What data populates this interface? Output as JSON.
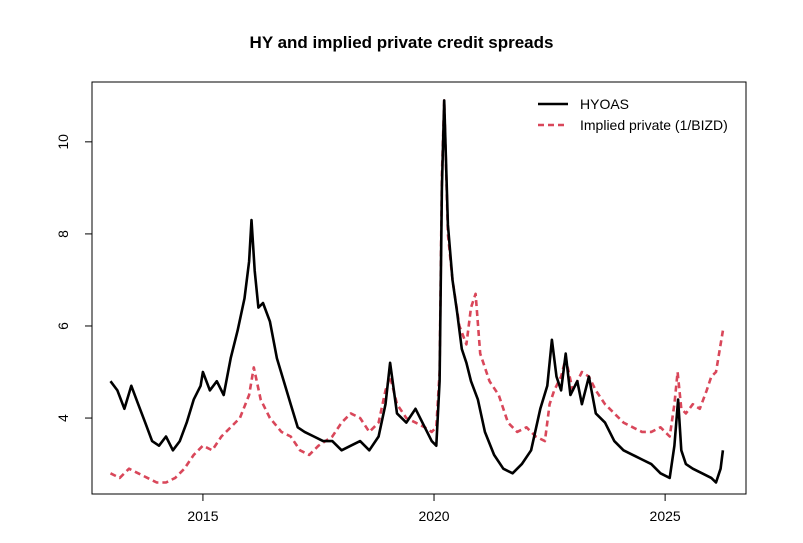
{
  "chart_data": {
    "type": "line",
    "title": "HY and implied private credit spreads",
    "xlabel": "",
    "ylabel": "",
    "xlim": [
      2012.6,
      2026.75
    ],
    "ylim": [
      2.35,
      11.3
    ],
    "x_ticks": [
      {
        "value": 2015,
        "label": "2015"
      },
      {
        "value": 2020,
        "label": "2020"
      },
      {
        "value": 2025,
        "label": "2025"
      }
    ],
    "y_ticks": [
      {
        "value": 4,
        "label": "4"
      },
      {
        "value": 6,
        "label": "6"
      },
      {
        "value": 8,
        "label": "8"
      },
      {
        "value": 10,
        "label": "10"
      }
    ],
    "legend_position": "top-right",
    "grid": false,
    "series": [
      {
        "name": "HYOAS",
        "color": "#000000",
        "style": "solid",
        "x": [
          2013.0,
          2013.15,
          2013.3,
          2013.45,
          2013.6,
          2013.75,
          2013.9,
          2014.05,
          2014.2,
          2014.35,
          2014.5,
          2014.65,
          2014.8,
          2014.95,
          2015.0,
          2015.15,
          2015.3,
          2015.45,
          2015.6,
          2015.75,
          2015.9,
          2016.0,
          2016.05,
          2016.12,
          2016.2,
          2016.3,
          2016.45,
          2016.6,
          2016.75,
          2016.9,
          2017.05,
          2017.2,
          2017.4,
          2017.6,
          2017.8,
          2018.0,
          2018.2,
          2018.4,
          2018.6,
          2018.8,
          2018.95,
          2019.05,
          2019.2,
          2019.4,
          2019.6,
          2019.8,
          2019.95,
          2020.05,
          2020.12,
          2020.17,
          2020.22,
          2020.3,
          2020.4,
          2020.5,
          2020.6,
          2020.7,
          2020.8,
          2020.95,
          2021.1,
          2021.3,
          2021.5,
          2021.7,
          2021.9,
          2022.1,
          2022.3,
          2022.45,
          2022.55,
          2022.65,
          2022.75,
          2022.85,
          2022.95,
          2023.1,
          2023.2,
          2023.35,
          2023.5,
          2023.7,
          2023.9,
          2024.1,
          2024.3,
          2024.5,
          2024.7,
          2024.9,
          2025.1,
          2025.2,
          2025.28,
          2025.35,
          2025.45,
          2025.6,
          2025.8,
          2026.0,
          2026.1,
          2026.2,
          2026.25
        ],
        "values": [
          4.8,
          4.6,
          4.2,
          4.7,
          4.3,
          3.9,
          3.5,
          3.4,
          3.6,
          3.3,
          3.5,
          3.9,
          4.4,
          4.7,
          5.0,
          4.6,
          4.8,
          4.5,
          5.3,
          5.9,
          6.6,
          7.4,
          8.3,
          7.2,
          6.4,
          6.5,
          6.1,
          5.3,
          4.8,
          4.3,
          3.8,
          3.7,
          3.6,
          3.5,
          3.5,
          3.3,
          3.4,
          3.5,
          3.3,
          3.6,
          4.3,
          5.2,
          4.1,
          3.9,
          4.2,
          3.8,
          3.5,
          3.4,
          4.8,
          9.0,
          10.9,
          8.2,
          7.0,
          6.3,
          5.5,
          5.2,
          4.8,
          4.4,
          3.7,
          3.2,
          2.9,
          2.8,
          3.0,
          3.3,
          4.2,
          4.7,
          5.7,
          4.9,
          4.6,
          5.4,
          4.5,
          4.8,
          4.3,
          4.9,
          4.1,
          3.9,
          3.5,
          3.3,
          3.2,
          3.1,
          3.0,
          2.8,
          2.7,
          3.4,
          4.4,
          3.3,
          3.0,
          2.9,
          2.8,
          2.7,
          2.6,
          2.9,
          3.3
        ]
      },
      {
        "name": "Implied private (1/BIZD)",
        "color": "#d9475a",
        "style": "dashed",
        "x": [
          2013.0,
          2013.2,
          2013.4,
          2013.6,
          2013.8,
          2014.0,
          2014.2,
          2014.4,
          2014.6,
          2014.8,
          2015.0,
          2015.2,
          2015.4,
          2015.6,
          2015.8,
          2016.0,
          2016.1,
          2016.25,
          2016.45,
          2016.7,
          2016.9,
          2017.1,
          2017.3,
          2017.5,
          2017.8,
          2018.0,
          2018.2,
          2018.4,
          2018.6,
          2018.8,
          2018.95,
          2019.05,
          2019.2,
          2019.4,
          2019.6,
          2019.8,
          2019.95,
          2020.05,
          2020.12,
          2020.17,
          2020.22,
          2020.3,
          2020.4,
          2020.55,
          2020.7,
          2020.8,
          2020.9,
          2021.0,
          2021.2,
          2021.4,
          2021.6,
          2021.8,
          2022.0,
          2022.2,
          2022.4,
          2022.5,
          2022.6,
          2022.75,
          2022.85,
          2023.0,
          2023.2,
          2023.35,
          2023.5,
          2023.7,
          2023.9,
          2024.1,
          2024.3,
          2024.5,
          2024.7,
          2024.9,
          2025.1,
          2025.2,
          2025.27,
          2025.35,
          2025.45,
          2025.6,
          2025.75,
          2025.9,
          2026.0,
          2026.1,
          2026.2,
          2026.25
        ],
        "values": [
          2.8,
          2.7,
          2.9,
          2.8,
          2.7,
          2.6,
          2.6,
          2.7,
          2.9,
          3.2,
          3.4,
          3.3,
          3.6,
          3.8,
          4.0,
          4.5,
          5.1,
          4.4,
          4.0,
          3.7,
          3.6,
          3.3,
          3.2,
          3.4,
          3.6,
          3.9,
          4.1,
          4.0,
          3.7,
          3.9,
          4.6,
          4.9,
          4.3,
          4.0,
          3.9,
          3.8,
          3.7,
          3.8,
          5.0,
          9.3,
          10.9,
          8.0,
          7.0,
          6.0,
          5.6,
          6.4,
          6.7,
          5.4,
          4.8,
          4.5,
          3.9,
          3.7,
          3.8,
          3.6,
          3.5,
          4.3,
          4.6,
          4.9,
          5.3,
          4.6,
          5.0,
          4.9,
          4.6,
          4.3,
          4.1,
          3.9,
          3.8,
          3.7,
          3.7,
          3.8,
          3.6,
          4.3,
          5.0,
          4.2,
          4.1,
          4.3,
          4.2,
          4.6,
          4.9,
          5.0,
          5.6,
          5.9
        ]
      }
    ]
  }
}
